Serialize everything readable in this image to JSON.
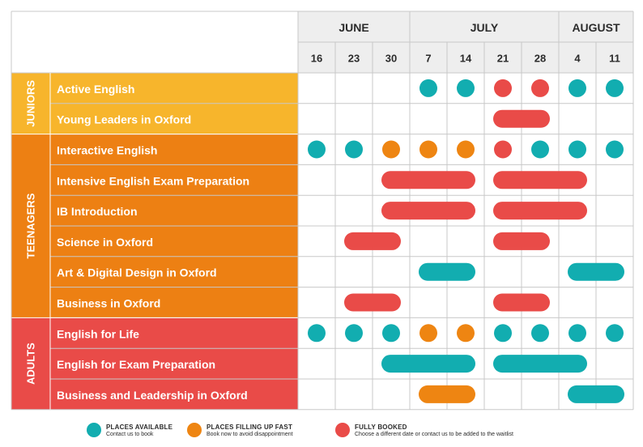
{
  "months": [
    "JUNE",
    "JULY",
    "AUGUST"
  ],
  "weeks": [
    "16",
    "23",
    "30",
    "7",
    "14",
    "21",
    "28",
    "4",
    "11"
  ],
  "colors": {
    "juniors": "#f7b52c",
    "teenagers": "#ed8013",
    "adults": "#e94b48",
    "available": "#12adb0",
    "filling": "#ee8512",
    "booked": "#e94b48",
    "header_bg": "#eeeeee",
    "grid": "#c8c8c8",
    "text_dark": "#2b2b2b"
  },
  "groups": [
    {
      "name": "JUNIORS",
      "color_key": "juniors",
      "courses": [
        {
          "name": "Active English",
          "cells": [
            "",
            "",
            "",
            "available",
            "available",
            "booked",
            "booked",
            "available",
            "available"
          ]
        },
        {
          "name": "Young Leaders in Oxford",
          "bars": [
            {
              "start": 5,
              "end": 6,
              "status": "booked"
            }
          ]
        }
      ]
    },
    {
      "name": "TEENAGERS",
      "color_key": "teenagers",
      "courses": [
        {
          "name": "Interactive English",
          "cells": [
            "available",
            "available",
            "filling",
            "filling",
            "filling",
            "booked",
            "available",
            "available",
            "available"
          ]
        },
        {
          "name": "Intensive English Exam Preparation",
          "bars": [
            {
              "start": 2,
              "end": 4,
              "status": "booked"
            },
            {
              "start": 5,
              "end": 7,
              "status": "booked"
            }
          ]
        },
        {
          "name": "IB Introduction",
          "bars": [
            {
              "start": 2,
              "end": 4,
              "status": "booked"
            },
            {
              "start": 5,
              "end": 7,
              "status": "booked"
            }
          ]
        },
        {
          "name": "Science in Oxford",
          "bars": [
            {
              "start": 1,
              "end": 2,
              "status": "booked"
            },
            {
              "start": 5,
              "end": 6,
              "status": "booked"
            }
          ]
        },
        {
          "name": "Art & Digital Design in Oxford",
          "bars": [
            {
              "start": 3,
              "end": 4,
              "status": "available"
            },
            {
              "start": 7,
              "end": 8,
              "status": "available"
            }
          ]
        },
        {
          "name": "Business in Oxford",
          "bars": [
            {
              "start": 1,
              "end": 2,
              "status": "booked"
            },
            {
              "start": 5,
              "end": 6,
              "status": "booked"
            }
          ]
        }
      ]
    },
    {
      "name": "ADULTS",
      "color_key": "adults",
      "courses": [
        {
          "name": "English for Life",
          "cells": [
            "available",
            "available",
            "available",
            "filling",
            "filling",
            "available",
            "available",
            "available",
            "available"
          ]
        },
        {
          "name": "English for Exam Preparation",
          "bars": [
            {
              "start": 2,
              "end": 4,
              "status": "available"
            },
            {
              "start": 5,
              "end": 7,
              "status": "available"
            }
          ]
        },
        {
          "name": "Business and Leadership in Oxford",
          "bars": [
            {
              "start": 3,
              "end": 4,
              "status": "filling"
            },
            {
              "start": 7,
              "end": 8,
              "status": "available"
            }
          ]
        }
      ]
    }
  ],
  "legend": [
    {
      "status": "available",
      "title": "PLACES AVAILABLE",
      "subtitle": "Contact us to book"
    },
    {
      "status": "filling",
      "title": "PLACES FILLING UP FAST",
      "subtitle": "Book now to avoid disappointment"
    },
    {
      "status": "booked",
      "title": "FULLY BOOKED",
      "subtitle": "Choose a different date or contact us to be added to the waitlist"
    }
  ]
}
